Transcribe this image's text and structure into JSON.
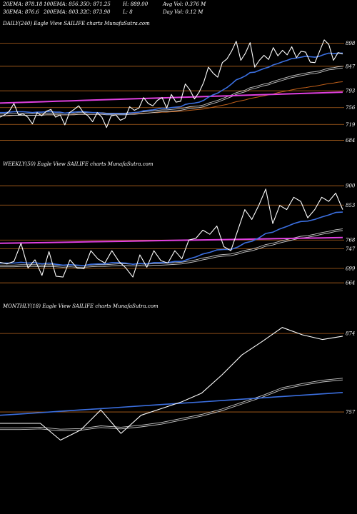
{
  "header": {
    "row1": [
      {
        "id": "ema20",
        "text": "20EMA: 878.18"
      },
      {
        "id": "ema100",
        "text": "100EMA: 856.35"
      },
      {
        "id": "open",
        "text": "O: 871.25"
      },
      {
        "id": "high",
        "text": "H: 889.00"
      },
      {
        "id": "avgvol",
        "text": "Avg Vol: 0.376  M"
      }
    ],
    "row2": [
      {
        "id": "ema30",
        "text": "30EMA: 876.6"
      },
      {
        "id": "ema200",
        "text": "200EMA: 803.32"
      },
      {
        "id": "close",
        "text": "C: 873.90"
      },
      {
        "id": "low",
        "text": "L: 8"
      },
      {
        "id": "dayvol",
        "text": "Day Vol: 0.12  M"
      }
    ]
  },
  "panels": [
    {
      "id": "daily",
      "title": "DAILY(240) Eagle   View  SAILIFE charts MunafaSutra.com",
      "levels": [
        "898",
        "847",
        "793",
        "756",
        "719",
        "684"
      ]
    },
    {
      "id": "weekly",
      "title": "WEEKLY(50) Eagle   View  SAILIFE charts MunafaSutra.com",
      "levels": [
        "900",
        "853",
        "768",
        "747",
        "699",
        "664"
      ]
    },
    {
      "id": "monthly",
      "title": "MONTHLY(18) Eagle   View  SAILIFE charts MunafaSutra.com",
      "levels": [
        "874",
        "757"
      ]
    }
  ],
  "colors": {
    "background": "#000000",
    "price": "#ffffff",
    "ema_fast": "#3b6fe0",
    "ema_slow": "#c8c8c8",
    "ema_long": "#c0601a",
    "trend": "#e040e0",
    "level_line": "#b4641e"
  },
  "chart_data": [
    {
      "type": "line",
      "id": "daily",
      "ylim": [
        655,
        930
      ],
      "levels": [
        898,
        847,
        793,
        756,
        719,
        684
      ],
      "series": [
        {
          "role": "price",
          "values": [
            735,
            740,
            748,
            765,
            740,
            742,
            735,
            720,
            745,
            738,
            748,
            752,
            735,
            740,
            718,
            745,
            752,
            760,
            745,
            738,
            725,
            745,
            735,
            712,
            738,
            740,
            728,
            733,
            758,
            750,
            755,
            778,
            765,
            760,
            772,
            778,
            755,
            785,
            768,
            770,
            808,
            795,
            775,
            790,
            812,
            845,
            832,
            823,
            855,
            863,
            880,
            902,
            860,
            876,
            899,
            845,
            860,
            871,
            862,
            888,
            870,
            882,
            872,
            890,
            866,
            880,
            878,
            856,
            855,
            880,
            905,
            895,
            860,
            877,
            874
          ]
        },
        {
          "role": "ema_fast",
          "values": [
            745,
            745,
            746,
            747,
            747,
            747,
            746,
            745,
            746,
            746,
            747,
            747,
            746,
            746,
            744,
            745,
            746,
            747,
            747,
            746,
            745,
            745,
            744,
            742,
            742,
            743,
            742,
            742,
            744,
            745,
            746,
            749,
            750,
            751,
            753,
            755,
            754,
            756,
            757,
            758,
            763,
            765,
            766,
            768,
            772,
            779,
            784,
            788,
            794,
            800,
            808,
            817,
            821,
            826,
            833,
            834,
            838,
            842,
            845,
            850,
            853,
            857,
            860,
            864,
            865,
            867,
            869,
            868,
            867,
            869,
            873,
            876,
            875,
            876,
            876
          ]
        },
        {
          "role": "ema_slow",
          "values": [
            740,
            740,
            741,
            741,
            741,
            741,
            741,
            741,
            741,
            741,
            742,
            742,
            742,
            742,
            742,
            742,
            742,
            743,
            743,
            743,
            743,
            743,
            743,
            742,
            742,
            742,
            742,
            742,
            743,
            743,
            744,
            745,
            746,
            747,
            748,
            749,
            749,
            750,
            751,
            752,
            754,
            756,
            757,
            758,
            760,
            764,
            767,
            770,
            774,
            778,
            782,
            787,
            790,
            793,
            798,
            800,
            803,
            806,
            808,
            812,
            815,
            818,
            821,
            824,
            826,
            828,
            830,
            832,
            833,
            835,
            838,
            841,
            842,
            844,
            845
          ]
        },
        {
          "role": "ema_long",
          "values": [
            738,
            738,
            738,
            739,
            739,
            739,
            739,
            739,
            739,
            740,
            740,
            740,
            740,
            740,
            740,
            740,
            741,
            741,
            741,
            741,
            741,
            741,
            742,
            742,
            742,
            742,
            742,
            742,
            743,
            743,
            743,
            744,
            744,
            745,
            745,
            746,
            746,
            747,
            747,
            748,
            749,
            750,
            751,
            752,
            753,
            755,
            757,
            759,
            761,
            763,
            766,
            769,
            771,
            773,
            776,
            778,
            780,
            782,
            784,
            786,
            789,
            791,
            793,
            795,
            797,
            799,
            800,
            802,
            803,
            805,
            807,
            809,
            810,
            812,
            813
          ]
        },
        {
          "role": "trend",
          "values": [
            766,
            767,
            768,
            769,
            770,
            771,
            772,
            773,
            774,
            775,
            776,
            777,
            778,
            779,
            780,
            781,
            782,
            783,
            784,
            785,
            786,
            787,
            788,
            789,
            790
          ]
        }
      ]
    },
    {
      "type": "line",
      "id": "weekly",
      "ylim": [
        640,
        935
      ],
      "levels": [
        900,
        853,
        768,
        747,
        699,
        664
      ],
      "series": [
        {
          "role": "price",
          "values": [
            714,
            710,
            716,
            760,
            700,
            720,
            682,
            740,
            680,
            678,
            720,
            700,
            698,
            742,
            722,
            712,
            742,
            716,
            700,
            678,
            732,
            702,
            742,
            718,
            712,
            742,
            722,
            768,
            772,
            792,
            782,
            802,
            752,
            742,
            792,
            842,
            818,
            852,
            892,
            808,
            852,
            842,
            872,
            862,
            822,
            842,
            872,
            862,
            882,
            842
          ]
        },
        {
          "role": "ema_fast",
          "values": [
            712,
            712,
            712,
            714,
            712,
            713,
            710,
            712,
            709,
            707,
            708,
            707,
            706,
            709,
            710,
            710,
            713,
            713,
            712,
            709,
            711,
            710,
            713,
            713,
            713,
            716,
            716,
            722,
            727,
            734,
            738,
            744,
            745,
            745,
            751,
            761,
            765,
            773,
            784,
            787,
            795,
            801,
            808,
            813,
            814,
            818,
            824,
            829,
            835,
            836
          ]
        },
        {
          "role": "ema_slow",
          "values": [
            705,
            705,
            705,
            706,
            706,
            706,
            705,
            706,
            705,
            704,
            705,
            704,
            704,
            705,
            706,
            706,
            707,
            708,
            708,
            707,
            708,
            707,
            709,
            709,
            710,
            711,
            712,
            715,
            718,
            722,
            725,
            729,
            731,
            732,
            736,
            741,
            744,
            749,
            755,
            758,
            763,
            767,
            771,
            775,
            777,
            780,
            784,
            787,
            791,
            793
          ]
        },
        {
          "role": "trend",
          "values": [
            760,
            761,
            762,
            763,
            764,
            765,
            766,
            767,
            768,
            769,
            770,
            771,
            772,
            773,
            774
          ]
        }
      ]
    },
    {
      "type": "line",
      "id": "monthly",
      "ylim": [
        690,
        905
      ],
      "levels": [
        874,
        757
      ],
      "series": [
        {
          "role": "price",
          "values": [
            740,
            740,
            740,
            715,
            730,
            760,
            725,
            752,
            762,
            772,
            785,
            812,
            842,
            862,
            883,
            872,
            865,
            870
          ]
        },
        {
          "role": "ema_slow",
          "values": [
            732,
            732,
            733,
            730,
            731,
            735,
            733,
            736,
            740,
            746,
            752,
            760,
            770,
            780,
            792,
            798,
            803,
            806
          ]
        },
        {
          "role": "ema_fast",
          "values": [
            752,
            754,
            756,
            758,
            760,
            762,
            764,
            766,
            768,
            770,
            772,
            774,
            776,
            778,
            780,
            782,
            784,
            786
          ]
        }
      ]
    }
  ]
}
